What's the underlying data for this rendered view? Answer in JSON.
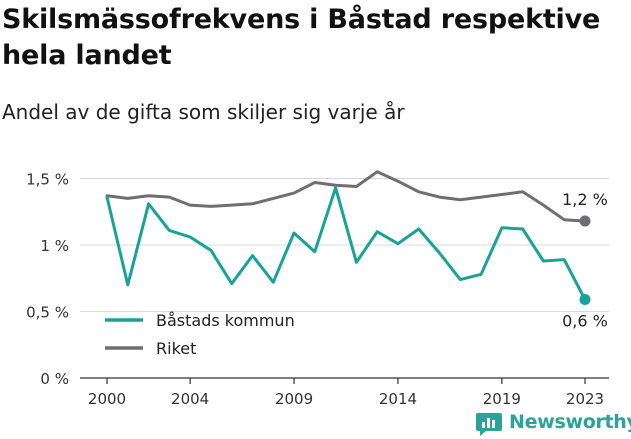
{
  "title": "Skilsmässofrekvens i Båstad respektive hela landet",
  "subtitle": "Andel av de gifta som skiljer sig varje år",
  "brand": {
    "name": "Newsworthy",
    "icon": "newsworthy-logo-icon"
  },
  "colors": {
    "series_bastad": "#17a398",
    "series_riket": "#6f6f73",
    "grid": "#d9d9d9",
    "axis": "#333333"
  },
  "chart_data": {
    "type": "line",
    "x": [
      2000,
      2001,
      2002,
      2003,
      2004,
      2005,
      2006,
      2007,
      2008,
      2009,
      2010,
      2011,
      2012,
      2013,
      2014,
      2015,
      2016,
      2017,
      2018,
      2019,
      2020,
      2021,
      2022,
      2023
    ],
    "xticks": [
      2000,
      2004,
      2009,
      2014,
      2019,
      2023
    ],
    "yticks": [
      {
        "value": 0,
        "label": "0 %"
      },
      {
        "value": 0.5,
        "label": "0,5 %"
      },
      {
        "value": 1,
        "label": "1 %"
      },
      {
        "value": 1.5,
        "label": "1,5 %"
      }
    ],
    "ylim": [
      0,
      1.6
    ],
    "grid": true,
    "legend_position": "bottom-left",
    "series": [
      {
        "name": "Båstads kommun",
        "color": "#17a398",
        "values": [
          1.36,
          0.7,
          1.31,
          1.11,
          1.06,
          0.96,
          0.71,
          0.92,
          0.72,
          1.09,
          0.95,
          1.43,
          0.87,
          1.1,
          1.01,
          1.12,
          0.94,
          0.74,
          0.78,
          1.13,
          1.12,
          0.88,
          0.89,
          0.59
        ],
        "end_label": "0,6 %"
      },
      {
        "name": "Riket",
        "color": "#6f6f73",
        "values": [
          1.37,
          1.35,
          1.37,
          1.36,
          1.3,
          1.29,
          1.3,
          1.31,
          1.35,
          1.39,
          1.47,
          1.45,
          1.44,
          1.55,
          1.48,
          1.4,
          1.36,
          1.34,
          1.36,
          1.38,
          1.4,
          1.3,
          1.19,
          1.18
        ],
        "end_label": "1,2 %"
      }
    ]
  }
}
